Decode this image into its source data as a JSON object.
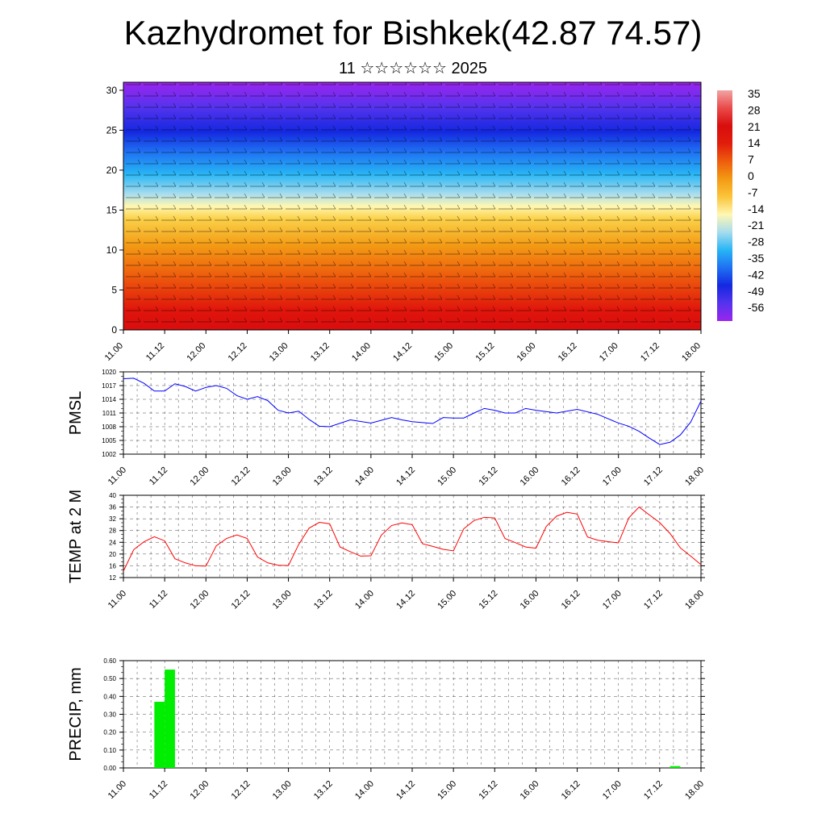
{
  "title": "Kazhydromet for Bishkek(42.87 74.57)",
  "subtitle": "11 ☆☆☆☆☆☆ 2025",
  "colors": {
    "cross_section_scale": [
      "#9b25ee",
      "#5533ee",
      "#1428e0",
      "#1f70f2",
      "#27b5f5",
      "#a6dcee",
      "#fff7b3",
      "#fbc53a",
      "#f39a14",
      "#ee5d0d",
      "#e11d0c",
      "#d90d0d",
      "#ea4a4a",
      "#f2a3a3"
    ],
    "pmsl_line": "#0000ff",
    "temp_line": "#ff0000",
    "precip_bar": "#00ee00"
  },
  "chart_data": [
    {
      "type": "heatmap",
      "name": "cross-section",
      "title": "",
      "xlabel": "",
      "ylabel": "",
      "x_tick_labels": [
        "11.00",
        "11.12",
        "12.00",
        "12.12",
        "13.00",
        "13.12",
        "14.00",
        "14.12",
        "15.00",
        "15.12",
        "16.00",
        "16.12",
        "17.00",
        "17.12",
        "18.00"
      ],
      "y_ticks": [
        0,
        5,
        10,
        15,
        20,
        25,
        30
      ],
      "ylim": [
        0,
        31
      ],
      "colorbar_labels": [
        "35",
        "28",
        "21",
        "14",
        "7",
        "0",
        "-7",
        "-14",
        "-21",
        "-28",
        "-35",
        "-42",
        "-49",
        "-56"
      ],
      "vertical_profile_levels": [
        0,
        5,
        10,
        15,
        20,
        25,
        30
      ],
      "vertical_profile_values": [
        28,
        21,
        12,
        -7,
        -28,
        -56,
        -70
      ],
      "overlay": "wind barbs"
    },
    {
      "type": "line",
      "name": "pmsl",
      "ylabel": "PMSL",
      "ylim": [
        1002,
        1020
      ],
      "y_ticks": [
        1002,
        1005,
        1008,
        1011,
        1014,
        1017,
        1020
      ],
      "x_tick_labels": [
        "11.00",
        "11.12",
        "12.00",
        "12.12",
        "13.00",
        "13.12",
        "14.00",
        "14.12",
        "15.00",
        "15.12",
        "16.00",
        "16.12",
        "17.00",
        "17.12",
        "18.00"
      ],
      "x_unit": "hours from 11.00",
      "series": [
        {
          "x": [
            0,
            3,
            6,
            9,
            12,
            15,
            18,
            21,
            24,
            27,
            30,
            33,
            36,
            39,
            42,
            45,
            48,
            51,
            54,
            57,
            60,
            66,
            72,
            78,
            81,
            84,
            90,
            93,
            96,
            99,
            102,
            105,
            108,
            111,
            114,
            117,
            120,
            126,
            132,
            138,
            144,
            147,
            150,
            153,
            156,
            159,
            162,
            165,
            168
          ],
          "values": [
            1018.5,
            1018.6,
            1017.5,
            1015.8,
            1015.8,
            1017.4,
            1016.8,
            1015.8,
            1016.6,
            1017.0,
            1016.4,
            1014.8,
            1014.0,
            1014.6,
            1013.7,
            1011.6,
            1011.0,
            1011.4,
            1009.6,
            1008.1,
            1008.0,
            1009.5,
            1008.8,
            1010.0,
            1009.5,
            1009.1,
            1008.7,
            1010.0,
            1009.9,
            1009.9,
            1011.0,
            1012.0,
            1011.6,
            1011.0,
            1011.0,
            1012.0,
            1011.6,
            1011.0,
            1011.8,
            1010.7,
            1008.8,
            1008.1,
            1007.0,
            1005.5,
            1004.1,
            1004.6,
            1006.2,
            1009.0,
            1013.6
          ]
        }
      ]
    },
    {
      "type": "line",
      "name": "temp-2m",
      "ylabel": "TEMP at 2 M",
      "ylim": [
        12,
        40
      ],
      "y_ticks": [
        12,
        16,
        20,
        24,
        28,
        32,
        36,
        40
      ],
      "x_tick_labels": [
        "11.00",
        "11.12",
        "12.00",
        "12.12",
        "13.00",
        "13.12",
        "14.00",
        "14.12",
        "15.00",
        "15.12",
        "16.00",
        "16.12",
        "17.00",
        "17.12",
        "18.00"
      ],
      "x_unit": "hours from 11.00",
      "series": [
        {
          "x": [
            0,
            3,
            6,
            9,
            12,
            15,
            18,
            21,
            24,
            27,
            30,
            33,
            36,
            39,
            42,
            45,
            48,
            51,
            54,
            57,
            60,
            63,
            66,
            69,
            72,
            75,
            78,
            81,
            84,
            87,
            90,
            93,
            96,
            99,
            102,
            105,
            108,
            111,
            114,
            117,
            120,
            123,
            126,
            129,
            132,
            135,
            138,
            141,
            144,
            147,
            150,
            153,
            156,
            159,
            162,
            165,
            168
          ],
          "values": [
            14.2,
            21.5,
            24.2,
            25.9,
            24.5,
            18.4,
            17.0,
            16.0,
            15.9,
            22.8,
            25.3,
            26.5,
            25.3,
            19.0,
            17.0,
            16.2,
            16.1,
            23.3,
            28.8,
            30.8,
            30.3,
            22.4,
            20.8,
            19.3,
            19.4,
            26.4,
            29.7,
            30.6,
            30.0,
            23.5,
            22.6,
            21.6,
            21.1,
            28.6,
            31.4,
            32.5,
            32.3,
            25.3,
            23.9,
            22.4,
            22.0,
            29.4,
            32.9,
            34.2,
            33.6,
            25.8,
            24.7,
            24.2,
            23.8,
            32.3,
            36.0,
            33.3,
            30.7,
            27.0,
            22.1,
            19.3,
            16.4
          ]
        }
      ]
    },
    {
      "type": "bar",
      "name": "precip",
      "ylabel": "PRECIP, mm",
      "ylim": [
        0,
        0.6
      ],
      "y_ticks": [
        "0.00",
        "0.10",
        "0.20",
        "0.30",
        "0.40",
        "0.50",
        "0.60"
      ],
      "x_tick_labels": [
        "11.00",
        "11.12",
        "12.00",
        "12.12",
        "13.00",
        "13.12",
        "14.00",
        "14.12",
        "15.00",
        "15.12",
        "16.00",
        "16.12",
        "17.00",
        "17.12",
        "18.00"
      ],
      "x_unit": "hours from 11.00",
      "bars": [
        {
          "x0": 9,
          "x1": 12,
          "value": 0.37
        },
        {
          "x0": 12,
          "x1": 15,
          "value": 0.55
        },
        {
          "x0": 159,
          "x1": 162,
          "value": 0.01
        }
      ]
    }
  ]
}
